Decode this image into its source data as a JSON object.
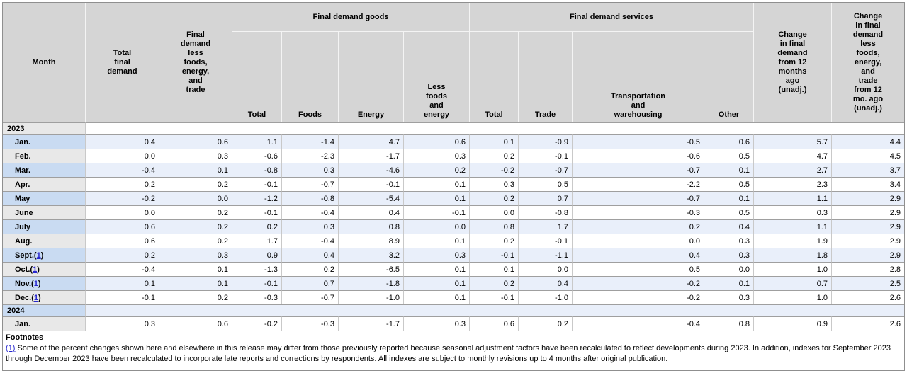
{
  "colors": {
    "header_gray": "#d5d5d5",
    "row_label_blue": "#c9dbf2",
    "row_body_blue": "#e9effa",
    "row_label_gray": "#e8e8e8",
    "link_blue": "#2626cf"
  },
  "header": {
    "month": "Month",
    "total_final_demand": "Total\nfinal\ndemand",
    "fd_less_fet": "Final\ndemand\nless\nfoods,\nenergy,\nand\ntrade",
    "goods_group": "Final demand goods",
    "goods_total": "Total",
    "goods_foods": "Foods",
    "goods_energy": "Energy",
    "goods_less_fe": "Less\nfoods\nand\nenergy",
    "services_group": "Final demand services",
    "services_total": "Total",
    "services_trade": "Trade",
    "services_transport": "Transportation\nand\nwarehousing",
    "services_other": "Other",
    "change_12mo": "Change\nin final\ndemand\nfrom 12\nmonths\nago\n(unadj.)",
    "change_12mo_less": "Change\nin final\ndemand\nless\nfoods,\nenergy,\nand\ntrade\nfrom 12\nmo. ago\n(unadj.)"
  },
  "rows": [
    {
      "type": "section",
      "label": "2023"
    },
    {
      "type": "data",
      "month": "Jan.",
      "values": [
        "0.4",
        "0.6",
        "1.1",
        "-1.4",
        "4.7",
        "0.6",
        "0.1",
        "-0.9",
        "-0.5",
        "0.6",
        "5.7",
        "4.4"
      ]
    },
    {
      "type": "data",
      "month": "Feb.",
      "values": [
        "0.0",
        "0.3",
        "-0.6",
        "-2.3",
        "-1.7",
        "0.3",
        "0.2",
        "-0.1",
        "-0.6",
        "0.5",
        "4.7",
        "4.5"
      ]
    },
    {
      "type": "data",
      "month": "Mar.",
      "values": [
        "-0.4",
        "0.1",
        "-0.8",
        "0.3",
        "-4.6",
        "0.2",
        "-0.2",
        "-0.7",
        "-0.7",
        "0.1",
        "2.7",
        "3.7"
      ]
    },
    {
      "type": "data",
      "month": "Apr.",
      "values": [
        "0.2",
        "0.2",
        "-0.1",
        "-0.7",
        "-0.1",
        "0.1",
        "0.3",
        "0.5",
        "-2.2",
        "0.5",
        "2.3",
        "3.4"
      ]
    },
    {
      "type": "data",
      "month": "May",
      "values": [
        "-0.2",
        "0.0",
        "-1.2",
        "-0.8",
        "-5.4",
        "0.1",
        "0.2",
        "0.7",
        "-0.7",
        "0.1",
        "1.1",
        "2.9"
      ]
    },
    {
      "type": "data",
      "month": "June",
      "values": [
        "0.0",
        "0.2",
        "-0.1",
        "-0.4",
        "0.4",
        "-0.1",
        "0.0",
        "-0.8",
        "-0.3",
        "0.5",
        "0.3",
        "2.9"
      ]
    },
    {
      "type": "data",
      "month": "July",
      "values": [
        "0.6",
        "0.2",
        "0.2",
        "0.3",
        "0.8",
        "0.0",
        "0.8",
        "1.7",
        "0.2",
        "0.4",
        "1.1",
        "2.9"
      ]
    },
    {
      "type": "data",
      "month": "Aug.",
      "values": [
        "0.6",
        "0.2",
        "1.7",
        "-0.4",
        "8.9",
        "0.1",
        "0.2",
        "-0.1",
        "0.0",
        "0.3",
        "1.9",
        "2.9"
      ]
    },
    {
      "type": "data",
      "month": "Sept.",
      "footnote_ref": "1",
      "values": [
        "0.2",
        "0.3",
        "0.9",
        "0.4",
        "3.2",
        "0.3",
        "-0.1",
        "-1.1",
        "0.4",
        "0.3",
        "1.8",
        "2.9"
      ]
    },
    {
      "type": "data",
      "month": "Oct.",
      "footnote_ref": "1",
      "values": [
        "-0.4",
        "0.1",
        "-1.3",
        "0.2",
        "-6.5",
        "0.1",
        "0.1",
        "0.0",
        "0.5",
        "0.0",
        "1.0",
        "2.8"
      ]
    },
    {
      "type": "data",
      "month": "Nov.",
      "footnote_ref": "1",
      "values": [
        "0.1",
        "0.1",
        "-0.1",
        "0.7",
        "-1.8",
        "0.1",
        "0.2",
        "0.4",
        "-0.2",
        "0.1",
        "0.7",
        "2.5"
      ]
    },
    {
      "type": "data",
      "month": "Dec.",
      "footnote_ref": "1",
      "values": [
        "-0.1",
        "0.2",
        "-0.3",
        "-0.7",
        "-1.0",
        "0.1",
        "-0.1",
        "-1.0",
        "-0.2",
        "0.3",
        "1.0",
        "2.6"
      ]
    },
    {
      "type": "section",
      "label": "2024"
    },
    {
      "type": "data",
      "month": "Jan.",
      "values": [
        "0.3",
        "0.6",
        "-0.2",
        "-0.3",
        "-1.7",
        "0.3",
        "0.6",
        "0.2",
        "-0.4",
        "0.8",
        "0.9",
        "2.6"
      ]
    }
  ],
  "footnotes": {
    "title": "Footnotes",
    "items": [
      {
        "ref": "(1)",
        "text": "Some of the percent changes shown here and elsewhere in this release may differ from those previously reported because seasonal adjustment factors have been recalculated to reflect developments during 2023. In addition, indexes for September 2023 through December 2023 have been recalculated to incorporate late reports and corrections by respondents. All indexes are subject to monthly revisions up to 4 months after original publication."
      }
    ]
  }
}
